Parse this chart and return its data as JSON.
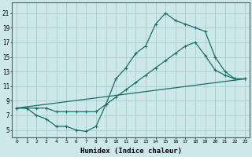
{
  "xlabel": "Humidex (Indice chaleur)",
  "background_color": "#cce8e8",
  "grid_color": "#aacccc",
  "line_color": "#1a6e6a",
  "xlim": [
    -0.5,
    23.5
  ],
  "ylim": [
    4.0,
    22.5
  ],
  "xticks": [
    0,
    1,
    2,
    3,
    4,
    5,
    6,
    7,
    8,
    9,
    10,
    11,
    12,
    13,
    14,
    15,
    16,
    17,
    18,
    19,
    20,
    21,
    22,
    23
  ],
  "yticks": [
    5,
    7,
    9,
    11,
    13,
    15,
    17,
    19,
    21
  ],
  "curve1_x": [
    0,
    1,
    2,
    3,
    4,
    5,
    6,
    7,
    8,
    9,
    10,
    11,
    12,
    13,
    14,
    15,
    16,
    17,
    18,
    19,
    20,
    21,
    22,
    23
  ],
  "curve1_y": [
    8,
    8,
    7,
    6.5,
    5.5,
    5.5,
    5,
    4.8,
    5.5,
    8.5,
    12,
    13.5,
    15.5,
    16.5,
    19.5,
    21,
    20,
    19.5,
    19,
    18.5,
    15,
    13,
    12,
    12
  ],
  "curve2_x": [
    0,
    1,
    2,
    3,
    4,
    5,
    6,
    7,
    8,
    9,
    10,
    11,
    12,
    13,
    14,
    15,
    16,
    17,
    18,
    19,
    20,
    21,
    22,
    23
  ],
  "curve2_y": [
    8,
    8,
    8,
    8,
    7.5,
    7.5,
    7.5,
    7.5,
    7.5,
    8.5,
    9.5,
    10.5,
    11.5,
    12.5,
    13.5,
    14.5,
    15.5,
    16.5,
    17,
    15.2,
    13.2,
    12.5,
    12,
    12
  ],
  "curve3_x": [
    0,
    23
  ],
  "curve3_y": [
    8,
    12
  ]
}
